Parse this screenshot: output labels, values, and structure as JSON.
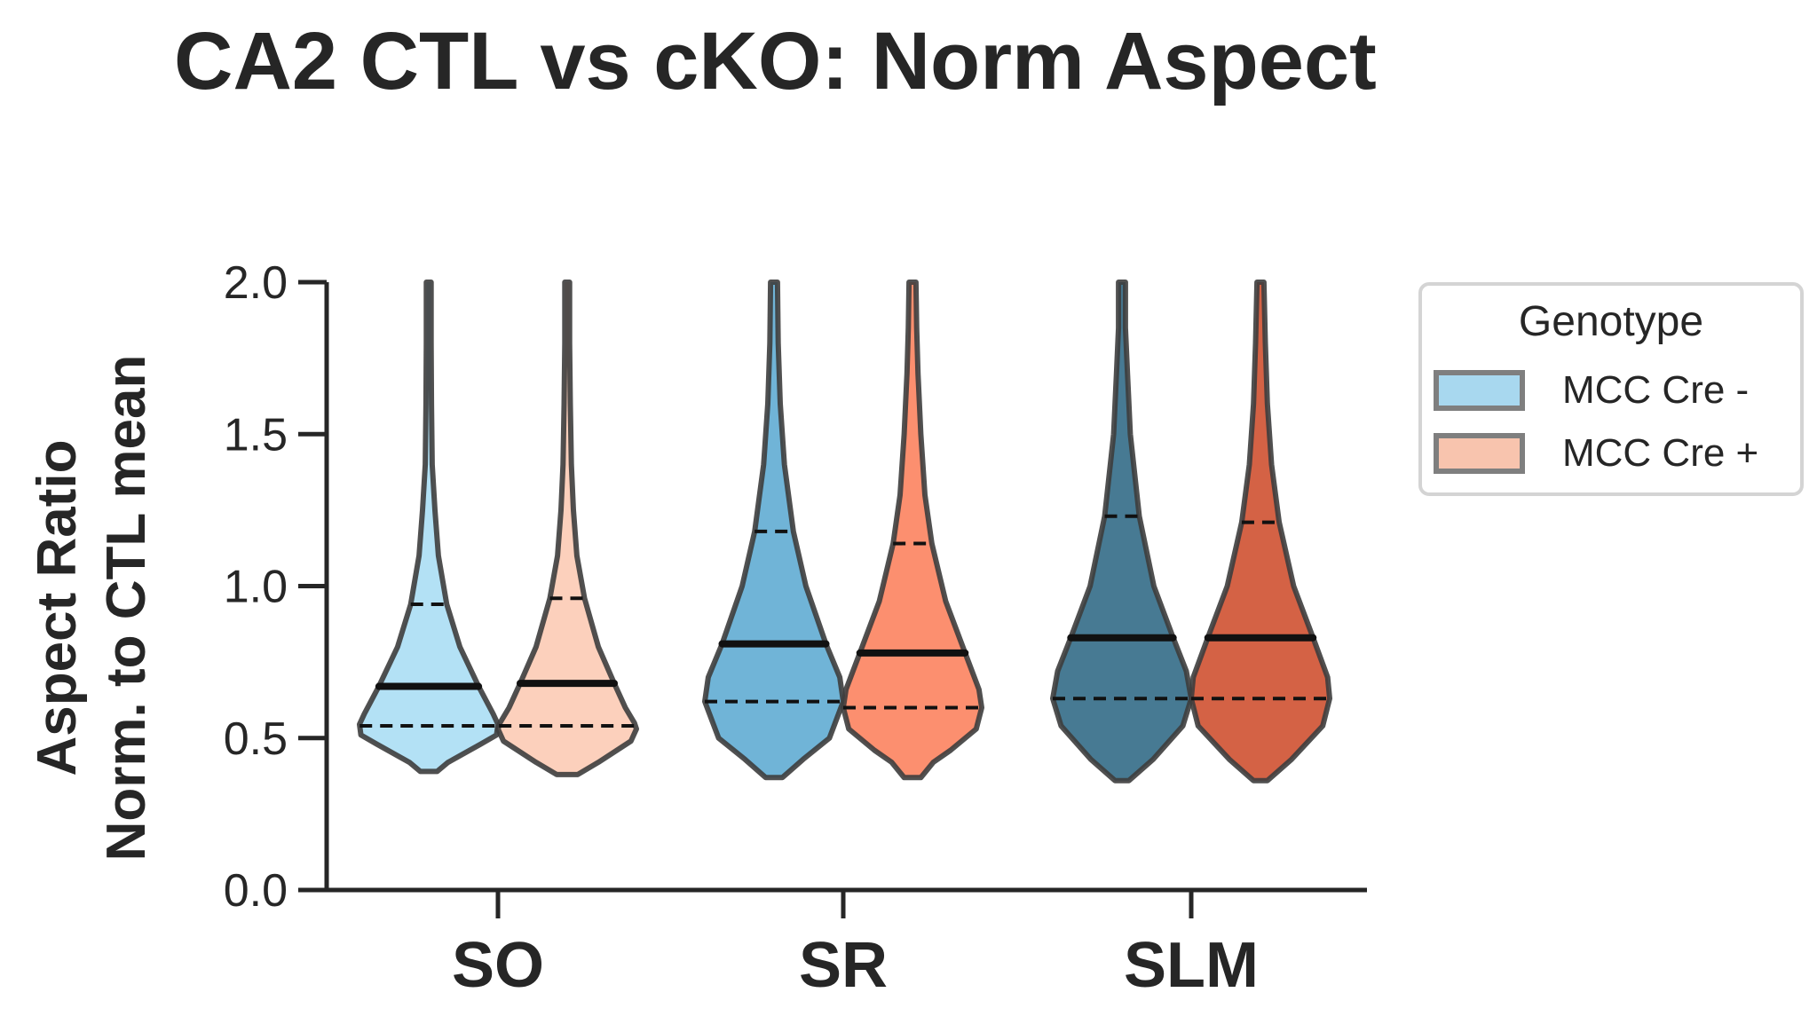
{
  "chart_data": {
    "type": "violin",
    "title": "CA2 CTL vs cKO: Norm Aspect",
    "ylabel_lines": [
      "Aspect Ratio",
      "Norm. to CTL mean"
    ],
    "xlabel": "",
    "ylim": [
      0.0,
      2.0
    ],
    "yticks": [
      {
        "value": 0.0,
        "label": "0.0"
      },
      {
        "value": 0.5,
        "label": "0.5"
      },
      {
        "value": 1.0,
        "label": "1.0"
      },
      {
        "value": 1.5,
        "label": "1.5"
      },
      {
        "value": 2.0,
        "label": "2.0"
      }
    ],
    "categories": [
      "SO",
      "SR",
      "SLM"
    ],
    "legend": {
      "title": "Genotype",
      "position": "outside-right",
      "entries": [
        {
          "label": "MCC Cre -",
          "color": "#a8d8ef"
        },
        {
          "label": "MCC Cre +",
          "color": "#f8c4ae"
        }
      ]
    },
    "series": [
      {
        "name": "MCC Cre -",
        "violins": [
          {
            "category": "SO",
            "color": "#b3e1f5",
            "min": 0.39,
            "q1": 0.54,
            "median": 0.67,
            "q3": 0.94,
            "top": 2.0,
            "profile": [
              [
                0.39,
                0.12
              ],
              [
                0.42,
                0.28
              ],
              [
                0.48,
                0.75
              ],
              [
                0.51,
                0.98
              ],
              [
                0.545,
                1.0
              ],
              [
                0.58,
                0.93
              ],
              [
                0.67,
                0.72
              ],
              [
                0.8,
                0.45
              ],
              [
                0.94,
                0.26
              ],
              [
                1.1,
                0.14
              ],
              [
                1.25,
                0.09
              ],
              [
                1.4,
                0.05
              ],
              [
                1.6,
                0.04
              ],
              [
                1.8,
                0.035
              ],
              [
                2.0,
                0.035
              ]
            ]
          },
          {
            "category": "SR",
            "color": "#70b4d7",
            "min": 0.37,
            "q1": 0.62,
            "median": 0.81,
            "q3": 1.18,
            "top": 2.0,
            "profile": [
              [
                0.37,
                0.12
              ],
              [
                0.43,
                0.42
              ],
              [
                0.5,
                0.8
              ],
              [
                0.62,
                1.0
              ],
              [
                0.7,
                0.95
              ],
              [
                0.81,
                0.75
              ],
              [
                1.0,
                0.46
              ],
              [
                1.18,
                0.28
              ],
              [
                1.4,
                0.15
              ],
              [
                1.6,
                0.09
              ],
              [
                1.8,
                0.06
              ],
              [
                2.0,
                0.05
              ]
            ]
          },
          {
            "category": "SLM",
            "color": "#477a93",
            "min": 0.36,
            "q1": 0.63,
            "median": 0.83,
            "q3": 1.23,
            "top": 2.0,
            "profile": [
              [
                0.36,
                0.1
              ],
              [
                0.43,
                0.45
              ],
              [
                0.54,
                0.88
              ],
              [
                0.63,
                1.0
              ],
              [
                0.72,
                0.93
              ],
              [
                0.83,
                0.74
              ],
              [
                1.0,
                0.46
              ],
              [
                1.23,
                0.25
              ],
              [
                1.5,
                0.12
              ],
              [
                1.7,
                0.08
              ],
              [
                1.85,
                0.05
              ],
              [
                2.0,
                0.05
              ]
            ]
          }
        ]
      },
      {
        "name": "MCC Cre +",
        "violins": [
          {
            "category": "SO",
            "color": "#fcd0bc",
            "min": 0.38,
            "q1": 0.54,
            "median": 0.68,
            "q3": 0.96,
            "top": 2.0,
            "profile": [
              [
                0.38,
                0.15
              ],
              [
                0.42,
                0.45
              ],
              [
                0.49,
                0.92
              ],
              [
                0.53,
                1.0
              ],
              [
                0.55,
                0.97
              ],
              [
                0.6,
                0.84
              ],
              [
                0.68,
                0.68
              ],
              [
                0.8,
                0.45
              ],
              [
                0.96,
                0.25
              ],
              [
                1.1,
                0.14
              ],
              [
                1.25,
                0.09
              ],
              [
                1.4,
                0.06
              ],
              [
                1.6,
                0.045
              ],
              [
                1.8,
                0.035
              ],
              [
                2.0,
                0.035
              ]
            ]
          },
          {
            "category": "SR",
            "color": "#fc8f6f",
            "min": 0.37,
            "q1": 0.6,
            "median": 0.78,
            "q3": 1.14,
            "top": 2.0,
            "profile": [
              [
                0.37,
                0.12
              ],
              [
                0.42,
                0.3
              ],
              [
                0.46,
                0.55
              ],
              [
                0.53,
                0.92
              ],
              [
                0.6,
                1.0
              ],
              [
                0.66,
                0.96
              ],
              [
                0.78,
                0.76
              ],
              [
                0.95,
                0.48
              ],
              [
                1.14,
                0.28
              ],
              [
                1.3,
                0.18
              ],
              [
                1.5,
                0.12
              ],
              [
                1.7,
                0.08
              ],
              [
                1.85,
                0.06
              ],
              [
                2.0,
                0.05
              ]
            ]
          },
          {
            "category": "SLM",
            "color": "#d46245",
            "min": 0.36,
            "q1": 0.63,
            "median": 0.83,
            "q3": 1.21,
            "top": 2.0,
            "profile": [
              [
                0.36,
                0.1
              ],
              [
                0.43,
                0.45
              ],
              [
                0.54,
                0.9
              ],
              [
                0.63,
                1.0
              ],
              [
                0.7,
                0.97
              ],
              [
                0.83,
                0.76
              ],
              [
                1.0,
                0.48
              ],
              [
                1.21,
                0.27
              ],
              [
                1.4,
                0.16
              ],
              [
                1.6,
                0.1
              ],
              [
                1.8,
                0.07
              ],
              [
                2.0,
                0.05
              ]
            ]
          }
        ]
      }
    ]
  }
}
